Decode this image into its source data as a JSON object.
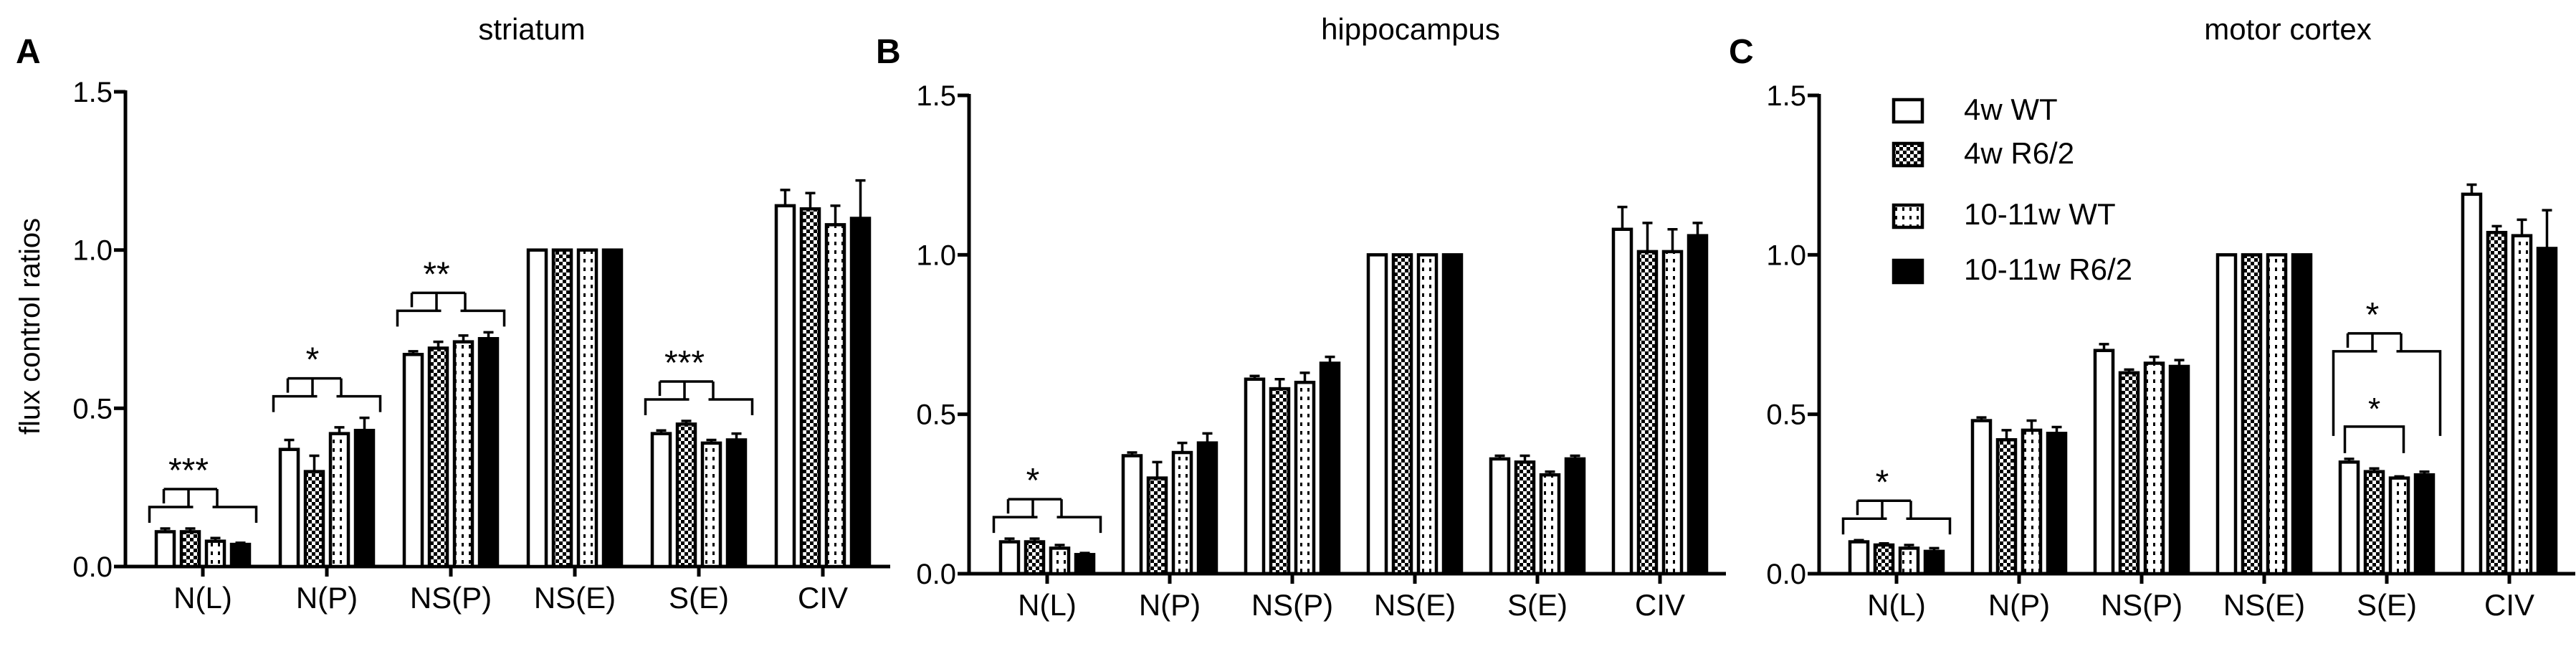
{
  "figure": {
    "ylabel": "flux control ratios",
    "ylim": [
      0,
      1.5
    ],
    "yticks": [
      "0.0",
      "0.5",
      "1.0",
      "1.5"
    ]
  },
  "colors": {
    "4w WT": "#ffffff",
    "4w R6/2": "checkered",
    "10-11w WT": "dotted",
    "10-11w R6/2": "#000000"
  },
  "chart_data": [
    {
      "type": "bar",
      "panel": "A",
      "title": "striatum",
      "ylabel": "flux control ratios",
      "ylim": [
        0,
        1.5
      ],
      "categories": [
        "N(L)",
        "N(P)",
        "NS(P)",
        "NS(E)",
        "S(E)",
        "CIV"
      ],
      "series": [
        {
          "name": "4w WT",
          "values": [
            0.11,
            0.37,
            0.67,
            1.0,
            0.42,
            1.14
          ],
          "errors": [
            0.01,
            0.03,
            0.01,
            0,
            0.01,
            0.05
          ]
        },
        {
          "name": "4w R6/2",
          "values": [
            0.11,
            0.3,
            0.69,
            1.0,
            0.45,
            1.13
          ],
          "errors": [
            0.01,
            0.05,
            0.02,
            0,
            0.01,
            0.05
          ]
        },
        {
          "name": "10-11w WT",
          "values": [
            0.08,
            0.42,
            0.71,
            1.0,
            0.39,
            1.08
          ],
          "errors": [
            0.01,
            0.02,
            0.02,
            0,
            0.01,
            0.06
          ]
        },
        {
          "name": "10-11w R6/2",
          "values": [
            0.07,
            0.43,
            0.72,
            1.0,
            0.4,
            1.1
          ],
          "errors": [
            0.005,
            0.04,
            0.02,
            0,
            0.02,
            0.12
          ]
        }
      ],
      "annotations": [
        {
          "label": "***",
          "group": 0
        },
        {
          "label": "*",
          "group": 1
        },
        {
          "label": "**",
          "group": 2
        },
        {
          "label": "***",
          "group": 4
        }
      ]
    },
    {
      "type": "bar",
      "panel": "B",
      "title": "hippocampus",
      "ylim": [
        0,
        1.5
      ],
      "categories": [
        "N(L)",
        "N(P)",
        "NS(P)",
        "NS(E)",
        "S(E)",
        "CIV"
      ],
      "series": [
        {
          "name": "4w WT",
          "values": [
            0.1,
            0.37,
            0.61,
            1.0,
            0.36,
            1.08
          ],
          "errors": [
            0.01,
            0.01,
            0.01,
            0,
            0.01,
            0.07
          ]
        },
        {
          "name": "4w R6/2",
          "values": [
            0.1,
            0.3,
            0.58,
            1.0,
            0.35,
            1.01
          ],
          "errors": [
            0.01,
            0.05,
            0.03,
            0,
            0.02,
            0.09
          ]
        },
        {
          "name": "10-11w WT",
          "values": [
            0.08,
            0.38,
            0.6,
            1.0,
            0.31,
            1.01
          ],
          "errors": [
            0.01,
            0.03,
            0.03,
            0,
            0.01,
            0.07
          ]
        },
        {
          "name": "10-11w R6/2",
          "values": [
            0.06,
            0.41,
            0.66,
            1.0,
            0.36,
            1.06
          ],
          "errors": [
            0.005,
            0.03,
            0.02,
            0,
            0.01,
            0.04
          ]
        }
      ],
      "annotations": [
        {
          "label": "*",
          "group": 0
        }
      ]
    },
    {
      "type": "bar",
      "panel": "C",
      "title": "motor cortex",
      "ylim": [
        0,
        1.5
      ],
      "categories": [
        "N(L)",
        "N(P)",
        "NS(P)",
        "NS(E)",
        "S(E)",
        "CIV"
      ],
      "series": [
        {
          "name": "4w WT",
          "values": [
            0.1,
            0.48,
            0.7,
            1.0,
            0.35,
            1.19
          ],
          "errors": [
            0.005,
            0.01,
            0.02,
            0,
            0.01,
            0.03
          ]
        },
        {
          "name": "4w R6/2",
          "values": [
            0.09,
            0.42,
            0.63,
            1.0,
            0.32,
            1.07
          ],
          "errors": [
            0.005,
            0.03,
            0.01,
            0,
            0.01,
            0.02
          ]
        },
        {
          "name": "10-11w WT",
          "values": [
            0.08,
            0.45,
            0.66,
            1.0,
            0.3,
            1.06
          ],
          "errors": [
            0.01,
            0.03,
            0.02,
            0,
            0.005,
            0.05
          ]
        },
        {
          "name": "10-11w R6/2",
          "values": [
            0.07,
            0.44,
            0.65,
            1.0,
            0.31,
            1.02
          ],
          "errors": [
            0.01,
            0.02,
            0.02,
            0,
            0.01,
            0.12
          ]
        }
      ],
      "annotations": [
        {
          "label": "*",
          "group": 0
        },
        {
          "label": "*",
          "group": 4,
          "level": "upper"
        },
        {
          "label": "*",
          "group": 4,
          "level": "lower"
        }
      ],
      "legend": {
        "placement": "top-left",
        "entries": [
          "4w WT",
          "4w R6/2",
          "10-11w WT",
          "10-11w R6/2"
        ]
      }
    }
  ]
}
